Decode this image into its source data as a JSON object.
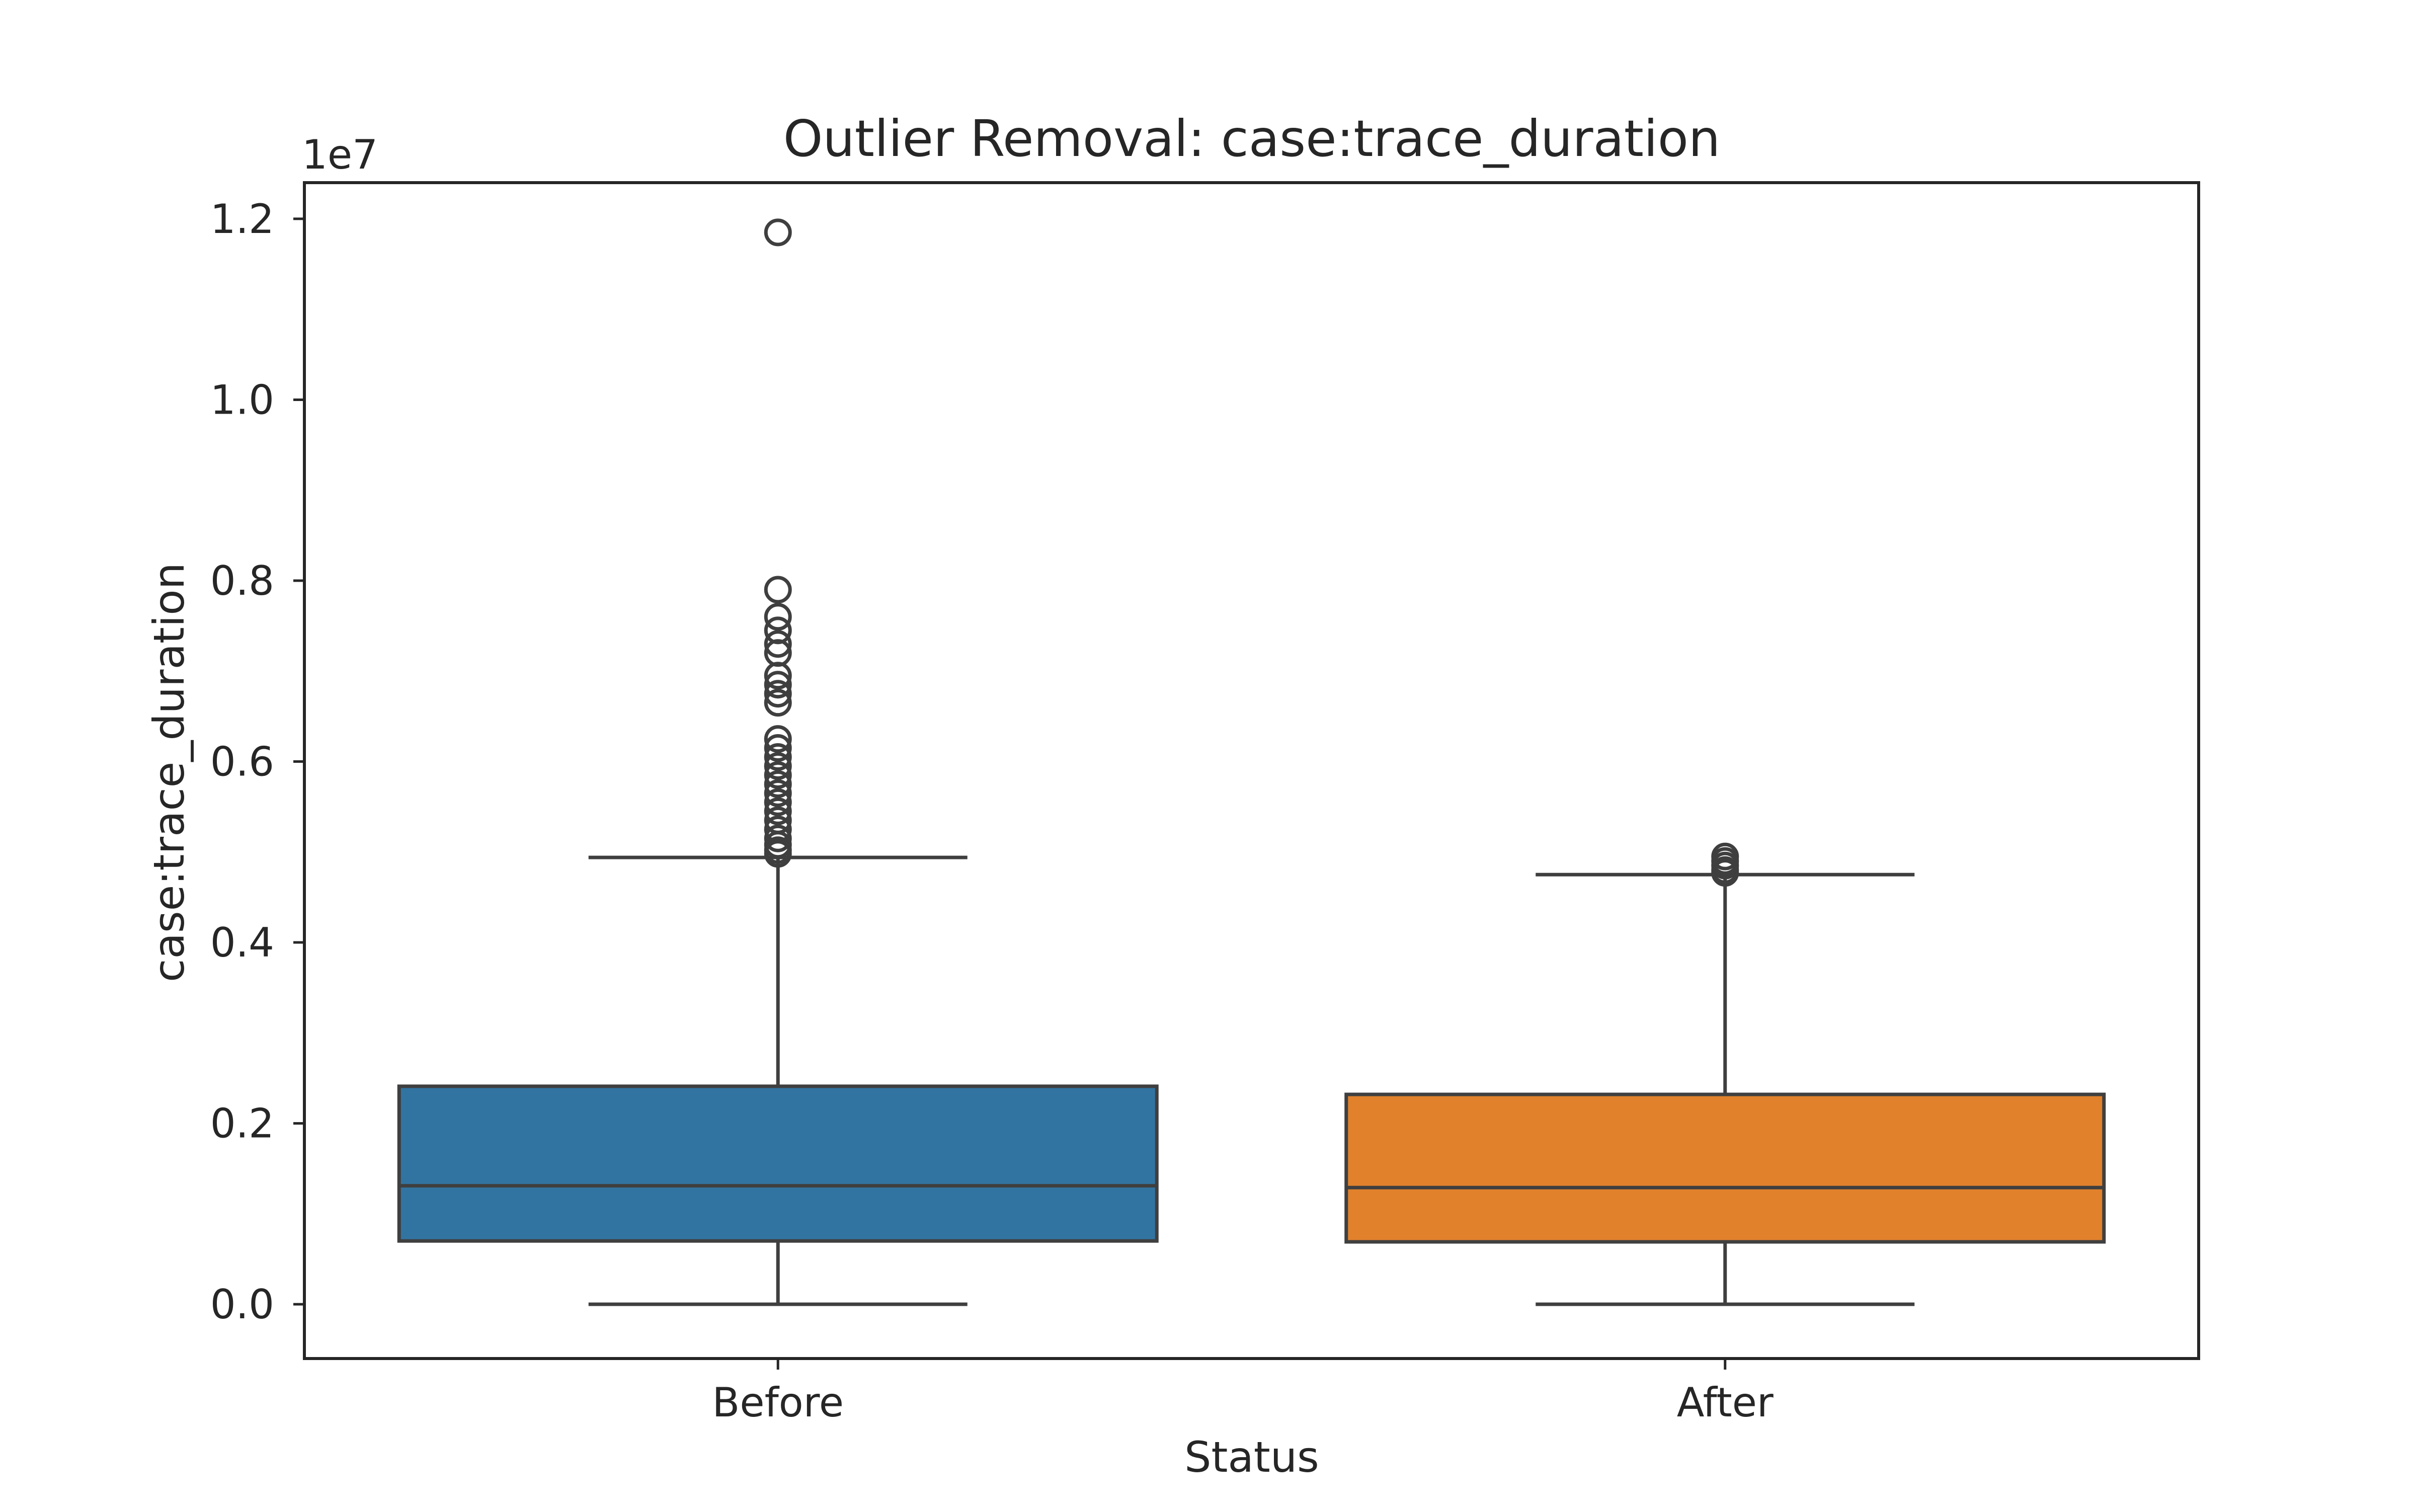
{
  "chart_data": {
    "type": "box",
    "title": "Outlier Removal: case:trace_duration",
    "xlabel": "Status",
    "ylabel": "case:trace_duration",
    "y_offset_label": "1e7",
    "y_scale_multiplier": 10000000,
    "ylim": [
      -0.06,
      1.24
    ],
    "yticks": [
      0.0,
      0.2,
      0.4,
      0.6,
      0.8,
      1.0,
      1.2
    ],
    "ytick_labels": [
      "0.0",
      "0.2",
      "0.4",
      "0.6",
      "0.8",
      "1.0",
      "1.2"
    ],
    "grid": false,
    "categories": [
      "Before",
      "After"
    ],
    "boxes": [
      {
        "name": "Before",
        "color": "#3274a1",
        "whisker_low": 0.0,
        "q1": 0.07,
        "median": 0.131,
        "q3": 0.241,
        "whisker_high": 0.494,
        "outliers": [
          1.185,
          0.79,
          0.76,
          0.745,
          0.73,
          0.72,
          0.695,
          0.685,
          0.675,
          0.665,
          0.625,
          0.615,
          0.605,
          0.595,
          0.585,
          0.575,
          0.565,
          0.555,
          0.545,
          0.535,
          0.525,
          0.515,
          0.508,
          0.502,
          0.498
        ]
      },
      {
        "name": "After",
        "color": "#e1812c",
        "whisker_low": 0.0,
        "q1": 0.069,
        "median": 0.129,
        "q3": 0.232,
        "whisker_high": 0.475,
        "outliers": [
          0.495,
          0.49,
          0.485,
          0.48,
          0.477
        ]
      }
    ]
  }
}
